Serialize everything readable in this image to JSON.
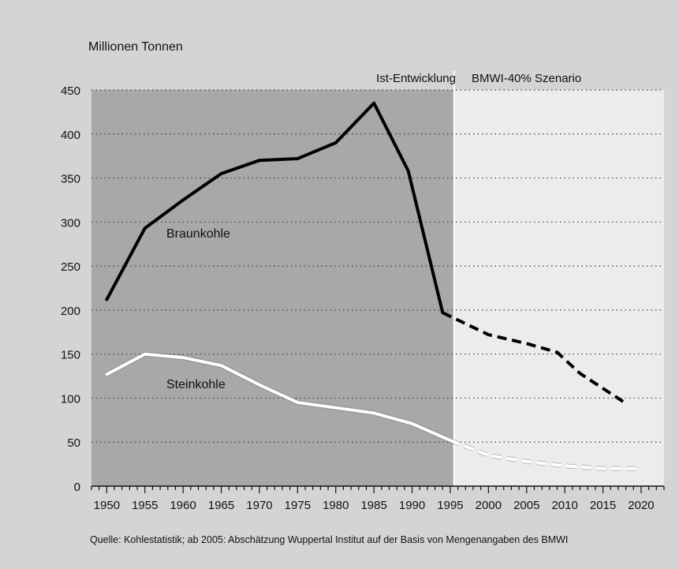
{
  "chart_data": {
    "type": "line",
    "ylabel": "Millionen Tonnen",
    "ylim": [
      0,
      450
    ],
    "yticks": [
      "0",
      "50",
      "100",
      "150",
      "200",
      "250",
      "300",
      "350",
      "400",
      "450"
    ],
    "xticks": [
      "1950",
      "1955",
      "1960",
      "1965",
      "1970",
      "1975",
      "1980",
      "1985",
      "1990",
      "1995",
      "2000",
      "2005",
      "2010",
      "2015",
      "2020"
    ],
    "xlim": [
      1948,
      2023
    ],
    "grid": "horizontal dotted",
    "regions": [
      {
        "label": "Ist-Entwicklung",
        "from": 1948,
        "to": 1995.5,
        "color": "#a8a8a8"
      },
      {
        "label": "BMWI-40% Szenario",
        "from": 1995.5,
        "to": 2023,
        "color": "#ececec"
      }
    ],
    "series": [
      {
        "name": "Braunkohle",
        "color": "#000000",
        "actual": [
          [
            1950,
            212
          ],
          [
            1955,
            293
          ],
          [
            1960,
            325
          ],
          [
            1965,
            355
          ],
          [
            1970,
            370
          ],
          [
            1975,
            372
          ],
          [
            1980,
            390
          ],
          [
            1985,
            435
          ],
          [
            1989.5,
            358
          ],
          [
            1994,
            197
          ]
        ],
        "scenario": [
          [
            1994,
            197
          ],
          [
            2000,
            172
          ],
          [
            2005,
            162
          ],
          [
            2009,
            152
          ],
          [
            2012,
            128
          ],
          [
            2018,
            94
          ]
        ]
      },
      {
        "name": "Steinkohle",
        "color": "#ffffff",
        "actual": [
          [
            1950,
            127
          ],
          [
            1955,
            150
          ],
          [
            1960,
            146
          ],
          [
            1965,
            137
          ],
          [
            1970,
            115
          ],
          [
            1975,
            95
          ],
          [
            1980,
            89
          ],
          [
            1985,
            83
          ],
          [
            1990,
            71
          ],
          [
            1995,
            52
          ]
        ],
        "scenario": [
          [
            1995,
            52
          ],
          [
            2000,
            35
          ],
          [
            2005,
            28
          ],
          [
            2010,
            23
          ],
          [
            2015,
            20
          ],
          [
            2020,
            20
          ]
        ]
      }
    ],
    "source": "Quelle: Kohlestatistik; ab 2005: Abschätzung Wuppertal Institut auf der Basis von Mengenangaben des BMWI"
  }
}
